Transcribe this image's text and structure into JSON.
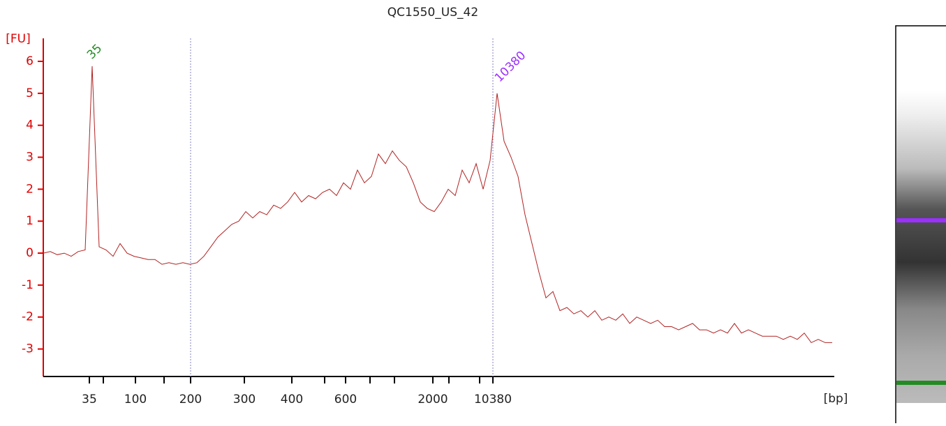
{
  "chart_data": {
    "type": "line",
    "title": "QC1550_US_42",
    "y_label": "[FU]",
    "x_label": "[bp]",
    "color": "#b22222",
    "axis_color": "#e00000",
    "ylim": [
      -3.86,
      6.72
    ],
    "yticks": [
      -3,
      -2,
      -1,
      0,
      1,
      2,
      3,
      4,
      5,
      6
    ],
    "x_ticks": [
      "35",
      null,
      "100",
      null,
      "200",
      "300",
      "400",
      null,
      "600",
      null,
      null,
      "2000",
      null,
      null,
      "10380"
    ],
    "values": [
      0.0,
      0.05,
      -0.05,
      0.0,
      -0.1,
      0.05,
      0.1,
      5.85,
      0.2,
      0.1,
      -0.1,
      0.3,
      0.0,
      -0.1,
      -0.15,
      -0.2,
      -0.2,
      -0.35,
      -0.3,
      -0.35,
      -0.3,
      -0.35,
      -0.3,
      -0.1,
      0.2,
      0.5,
      0.7,
      0.9,
      1.0,
      1.3,
      1.1,
      1.3,
      1.2,
      1.5,
      1.4,
      1.6,
      1.9,
      1.6,
      1.8,
      1.7,
      1.9,
      2.0,
      1.8,
      2.2,
      2.0,
      2.6,
      2.2,
      2.4,
      3.1,
      2.8,
      3.2,
      2.9,
      2.7,
      2.2,
      1.6,
      1.4,
      1.3,
      1.6,
      2.0,
      1.8,
      2.6,
      2.2,
      2.8,
      2.0,
      2.9,
      5.0,
      3.5,
      3.0,
      2.4,
      1.2,
      0.3,
      -0.6,
      -1.4,
      -1.2,
      -1.8,
      -1.7,
      -1.9,
      -1.8,
      -2.0,
      -1.8,
      -2.1,
      -2.0,
      -2.1,
      -1.9,
      -2.2,
      -2.0,
      -2.1,
      -2.2,
      -2.1,
      -2.3,
      -2.3,
      -2.4,
      -2.3,
      -2.2,
      -2.4,
      -2.4,
      -2.5,
      -2.4,
      -2.5,
      -2.2,
      -2.5,
      -2.4,
      -2.5,
      -2.6,
      -2.6,
      -2.6,
      -2.7,
      -2.6,
      -2.7,
      -2.5,
      -2.8,
      -2.7,
      -2.8,
      -2.8
    ],
    "annotations": [
      {
        "text": "35",
        "color": "#228b22"
      },
      {
        "text": "10380",
        "color": "#9b30ff"
      }
    ]
  }
}
